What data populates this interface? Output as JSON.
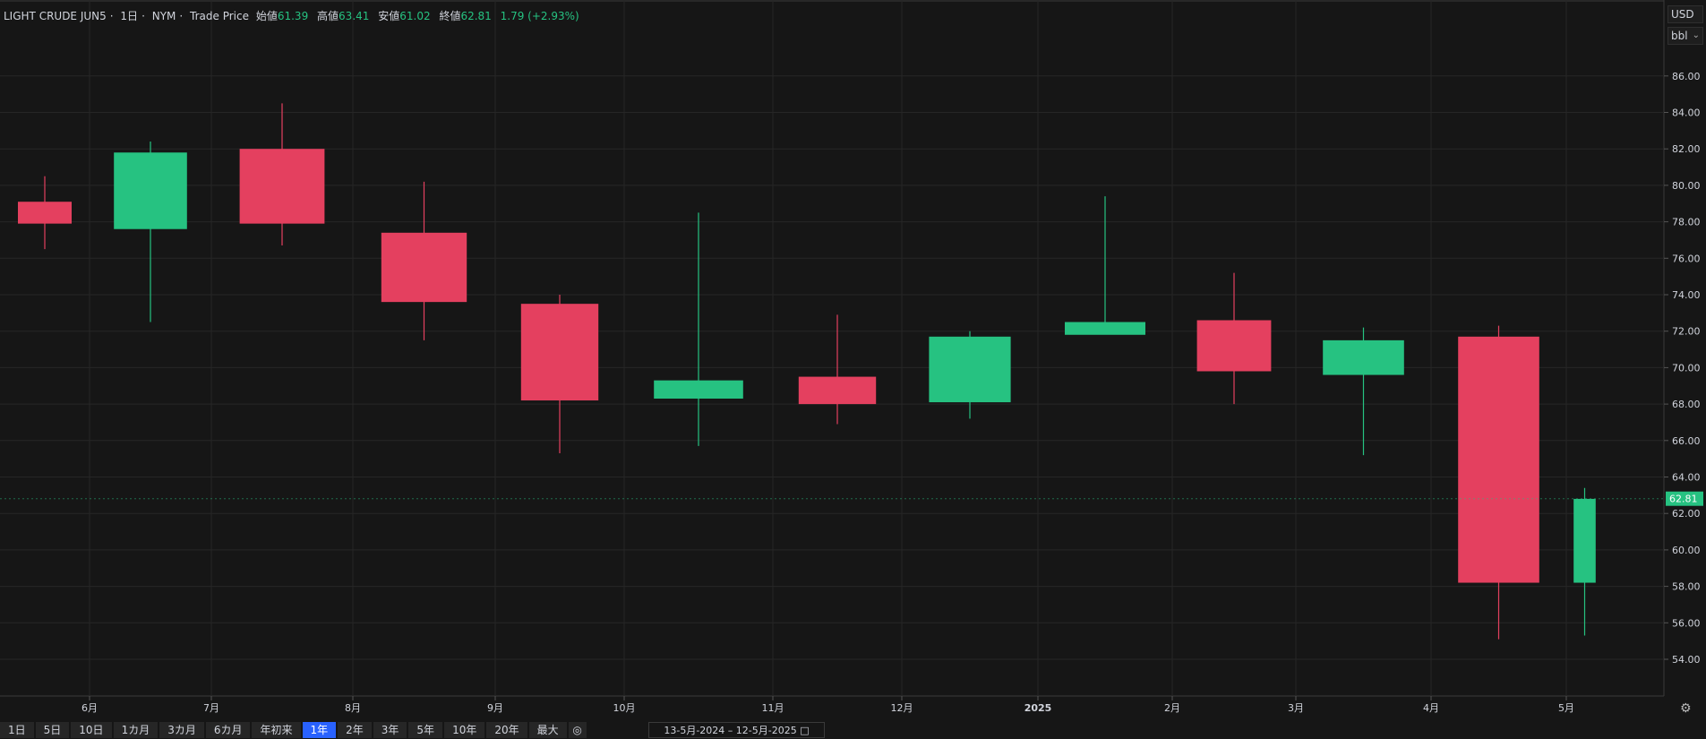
{
  "header": {
    "symbol": "LIGHT CRUDE JUN5",
    "interval": "1日",
    "exchange": "NYM",
    "price_type": "Trade Price",
    "open_label": "始値",
    "open": "61.39",
    "high_label": "高値",
    "high": "63.41",
    "low_label": "安値",
    "low": "61.02",
    "close_label": "終値",
    "close": "62.81",
    "change": "1.79 (+2.93%)"
  },
  "units": {
    "currency": "USD",
    "measure": "bbl"
  },
  "toolbar": {
    "timeframes": [
      "1日",
      "5日",
      "10日",
      "1カ月",
      "3カ月",
      "6カ月",
      "年初来",
      "1年",
      "2年",
      "3年",
      "5年",
      "10年",
      "20年",
      "最大"
    ],
    "active": "1年",
    "date_range": "13-5月-2024  –  12-5月-2025"
  },
  "colors": {
    "background": "#161616",
    "up": "#26c281",
    "down": "#e4405f",
    "grid": "#262626",
    "price_tag": "#26c281"
  },
  "chart_data": {
    "type": "candlestick",
    "x_tick_labels": [
      "6月",
      "7月",
      "8月",
      "9月",
      "10月",
      "11月",
      "12月",
      "2025",
      "2月",
      "3月",
      "4月",
      "5月"
    ],
    "y_tick_labels": [
      "54.00",
      "56.00",
      "58.00",
      "60.00",
      "62.00",
      "64.00",
      "66.00",
      "68.00",
      "70.00",
      "72.00",
      "74.00",
      "76.00",
      "78.00",
      "80.00",
      "82.00",
      "84.00",
      "86.00"
    ],
    "ylim": [
      53,
      88
    ],
    "last_price": "62.81",
    "grid": true,
    "monthly_ohlc": [
      {
        "period": "5月 2024",
        "open": 79.1,
        "high": 80.5,
        "low": 76.5,
        "close": 77.9
      },
      {
        "period": "6月 2024",
        "open": 77.6,
        "high": 82.4,
        "low": 72.5,
        "close": 81.8
      },
      {
        "period": "7月 2024",
        "open": 82.0,
        "high": 84.5,
        "low": 76.7,
        "close": 77.9
      },
      {
        "period": "8月 2024",
        "open": 77.4,
        "high": 80.2,
        "low": 71.5,
        "close": 73.6
      },
      {
        "period": "9月 2024",
        "open": 73.5,
        "high": 74.0,
        "low": 65.3,
        "close": 68.2
      },
      {
        "period": "10月 2024",
        "open": 68.3,
        "high": 78.5,
        "low": 65.7,
        "close": 69.3
      },
      {
        "period": "11月 2024",
        "open": 69.5,
        "high": 72.9,
        "low": 66.9,
        "close": 68.0
      },
      {
        "period": "12月 2024",
        "open": 68.1,
        "high": 72.0,
        "low": 67.2,
        "close": 71.7
      },
      {
        "period": "1月 2025",
        "open": 71.8,
        "high": 79.4,
        "low": 72.0,
        "close": 72.5
      },
      {
        "period": "2月 2025",
        "open": 72.6,
        "high": 75.2,
        "low": 68.0,
        "close": 69.8
      },
      {
        "period": "3月 2025",
        "open": 69.6,
        "high": 72.2,
        "low": 65.2,
        "close": 71.5
      },
      {
        "period": "4月 2025",
        "open": 71.7,
        "high": 72.3,
        "low": 55.1,
        "close": 58.2
      },
      {
        "period": "5月 2025",
        "open": 58.2,
        "high": 63.4,
        "low": 55.3,
        "close": 62.8
      }
    ]
  }
}
